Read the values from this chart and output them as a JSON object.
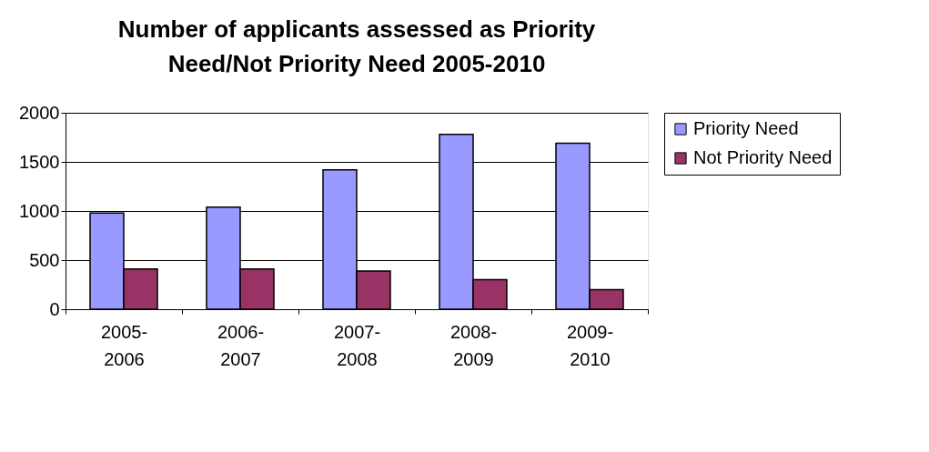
{
  "chart_data": {
    "type": "bar",
    "title": "Number of applicants assessed as Priority Need/Not Priority Need 2005-2010",
    "categories": [
      "2005-2006",
      "2006-2007",
      "2007-2008",
      "2008-2009",
      "2009-2010"
    ],
    "series": [
      {
        "name": "Priority Need",
        "color": "#9999ff",
        "values": [
          980,
          1040,
          1420,
          1780,
          1690
        ]
      },
      {
        "name": "Not Priority Need",
        "color": "#993366",
        "values": [
          410,
          410,
          390,
          300,
          200
        ]
      }
    ],
    "ylim": [
      0,
      2000
    ],
    "yticks": [
      0,
      500,
      1000,
      1500,
      2000
    ],
    "grid": "y",
    "legend": "right"
  }
}
